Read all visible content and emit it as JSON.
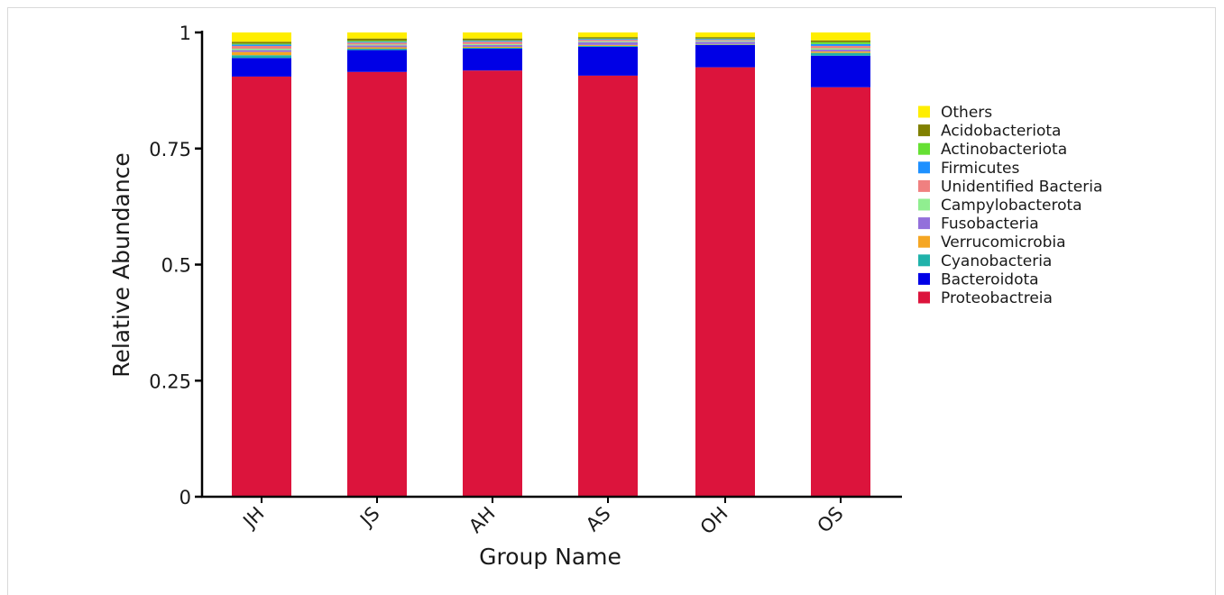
{
  "chart_data": {
    "type": "bar",
    "stacked": true,
    "xlabel": "Group Name",
    "ylabel": "Relative Abundance",
    "ylim": [
      0,
      1
    ],
    "yticks": [
      {
        "value": 0,
        "label": "0"
      },
      {
        "value": 0.25,
        "label": "0.25"
      },
      {
        "value": 0.5,
        "label": "0.5"
      },
      {
        "value": 0.75,
        "label": "0.75"
      },
      {
        "value": 1,
        "label": "1"
      }
    ],
    "categories": [
      "JH",
      "JS",
      "AH",
      "AS",
      "OH",
      "OS"
    ],
    "legend_position": "right",
    "series": [
      {
        "name": "Proteobactreia",
        "color": "#dc143c",
        "values": [
          0.905,
          0.915,
          0.918,
          0.907,
          0.925,
          0.882
        ]
      },
      {
        "name": "Bacteroidota",
        "color": "#0000e6",
        "values": [
          0.04,
          0.047,
          0.047,
          0.062,
          0.048,
          0.068
        ]
      },
      {
        "name": "Cyanobacteria",
        "color": "#20b2aa",
        "values": [
          0.006,
          0.003,
          0.002,
          0.002,
          0.001,
          0.006
        ]
      },
      {
        "name": "Verrucomicrobia",
        "color": "#f5a623",
        "values": [
          0.007,
          0.003,
          0.002,
          0.002,
          0.001,
          0.003
        ]
      },
      {
        "name": "Fusobacteria",
        "color": "#9370db",
        "values": [
          0.004,
          0.004,
          0.004,
          0.006,
          0.005,
          0.004
        ]
      },
      {
        "name": "Campylobacterota",
        "color": "#90ee90",
        "values": [
          0.003,
          0.002,
          0.002,
          0.002,
          0.002,
          0.003
        ]
      },
      {
        "name": "Unidentified Bacteria",
        "color": "#f08080",
        "values": [
          0.006,
          0.004,
          0.005,
          0.003,
          0.002,
          0.005
        ]
      },
      {
        "name": "Firmicutes",
        "color": "#1e90ff",
        "values": [
          0.003,
          0.002,
          0.002,
          0.002,
          0.002,
          0.004
        ]
      },
      {
        "name": "Actinobacteriota",
        "color": "#66e033",
        "values": [
          0.002,
          0.002,
          0.001,
          0.001,
          0.001,
          0.004
        ]
      },
      {
        "name": "Acidobacteriota",
        "color": "#808000",
        "values": [
          0.004,
          0.005,
          0.004,
          0.003,
          0.003,
          0.004
        ]
      },
      {
        "name": "Others",
        "color": "#ffee00",
        "values": [
          0.02,
          0.013,
          0.013,
          0.01,
          0.01,
          0.017
        ]
      }
    ]
  }
}
